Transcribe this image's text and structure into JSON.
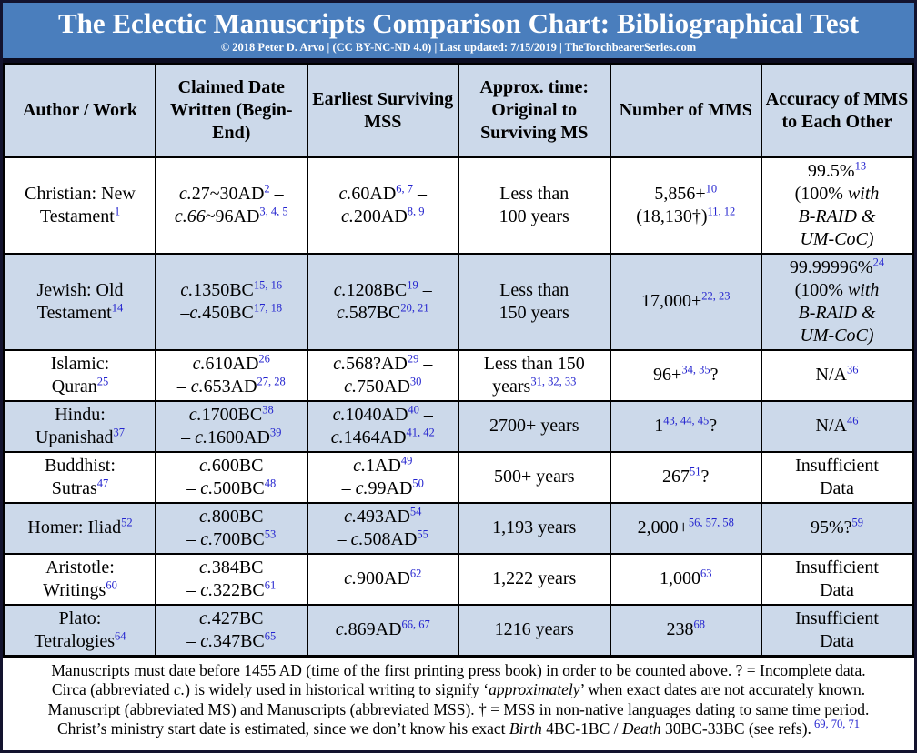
{
  "banner": {
    "title": "The Eclectic Manuscripts Comparison Chart: Bibliographical Test",
    "subtitle": "© 2018 Peter D. Arvo | (CC BY-NC-ND 4.0) | Last updated: 7/15/2019 | TheTorchbearerSeries.com"
  },
  "colors": {
    "banner_bg": "#4a7ebd",
    "banner_text": "#ffffff",
    "row_alt_bg": "#ccd9ea",
    "row_bg": "#ffffff",
    "grid_line": "#000000",
    "outer_frame": "#13132e",
    "footnote_ref": "#2424cf",
    "body_text": "#000000"
  },
  "chart_data": {
    "type": "table",
    "title": "The Eclectic Manuscripts Comparison Chart: Bibliographical Test",
    "columns": [
      "Author / Work",
      "Claimed Date Written (Begin-End)",
      "Earliest Surviving MSS",
      "Approx. time: Original to Surviving MS",
      "Number of MMS",
      "Accuracy of MMS to Each Other"
    ],
    "rows": [
      [
        [
          {
            "t": "Christian: New"
          },
          {
            "br": 1
          },
          {
            "t": "Testament"
          },
          {
            "t": "1",
            "sup": 1
          }
        ],
        [
          {
            "t": "c.",
            "i": 1
          },
          {
            "t": "27~30AD"
          },
          {
            "t": "2",
            "sup": 1
          },
          {
            "t": " –"
          },
          {
            "br": 1
          },
          {
            "t": "c.66",
            "i": 1
          },
          {
            "t": "~96AD"
          },
          {
            "t": "3, 4, 5",
            "sup": 1
          }
        ],
        [
          {
            "t": "c.",
            "i": 1
          },
          {
            "t": "60AD"
          },
          {
            "t": "6, 7",
            "sup": 1
          },
          {
            "t": " –"
          },
          {
            "br": 1
          },
          {
            "t": "c.",
            "i": 1
          },
          {
            "t": "200AD"
          },
          {
            "t": "8, 9",
            "sup": 1
          }
        ],
        [
          {
            "t": "Less than"
          },
          {
            "br": 1
          },
          {
            "t": "100 years"
          }
        ],
        [
          {
            "t": "5,856+"
          },
          {
            "t": "10",
            "sup": 1
          },
          {
            "br": 1
          },
          {
            "t": "(18,130†)"
          },
          {
            "t": "11, 12",
            "sup": 1
          }
        ],
        [
          {
            "t": "99.5%"
          },
          {
            "t": "13",
            "sup": 1
          },
          {
            "br": 1
          },
          {
            "t": "(100% "
          },
          {
            "t": "with",
            "i": 1
          },
          {
            "br": 1
          },
          {
            "t": "B-RAID &",
            "i": 1
          },
          {
            "br": 1
          },
          {
            "t": "UM-CoC)",
            "i": 1
          }
        ]
      ],
      [
        [
          {
            "t": "Jewish: Old"
          },
          {
            "br": 1
          },
          {
            "t": "Testament"
          },
          {
            "t": "14",
            "sup": 1
          }
        ],
        [
          {
            "t": "c.",
            "i": 1
          },
          {
            "t": "1350BC"
          },
          {
            "t": "15, 16",
            "sup": 1
          },
          {
            "br": 1
          },
          {
            "t": "–"
          },
          {
            "t": "c.",
            "i": 1
          },
          {
            "t": "450BC"
          },
          {
            "t": "17, 18",
            "sup": 1
          }
        ],
        [
          {
            "t": "c.",
            "i": 1
          },
          {
            "t": "1208BC"
          },
          {
            "t": "19",
            "sup": 1
          },
          {
            "t": " –"
          },
          {
            "br": 1
          },
          {
            "t": "c.",
            "i": 1
          },
          {
            "t": "587BC"
          },
          {
            "t": "20, 21",
            "sup": 1
          }
        ],
        [
          {
            "t": "Less than"
          },
          {
            "br": 1
          },
          {
            "t": "150 years"
          }
        ],
        [
          {
            "t": "17,000+"
          },
          {
            "t": "22, 23",
            "sup": 1
          }
        ],
        [
          {
            "t": "99.99996%"
          },
          {
            "t": "24",
            "sup": 1
          },
          {
            "br": 1
          },
          {
            "t": "(100% "
          },
          {
            "t": "with",
            "i": 1
          },
          {
            "br": 1
          },
          {
            "t": "B-RAID &",
            "i": 1
          },
          {
            "br": 1
          },
          {
            "t": "UM-CoC)",
            "i": 1
          }
        ]
      ],
      [
        [
          {
            "t": "Islamic:"
          },
          {
            "br": 1
          },
          {
            "t": "Quran"
          },
          {
            "t": "25",
            "sup": 1
          }
        ],
        [
          {
            "t": "c.",
            "i": 1
          },
          {
            "t": "610AD"
          },
          {
            "t": "26",
            "sup": 1
          },
          {
            "br": 1
          },
          {
            "t": "– "
          },
          {
            "t": "c.",
            "i": 1
          },
          {
            "t": "653AD"
          },
          {
            "t": "27, 28",
            "sup": 1
          }
        ],
        [
          {
            "t": "c.",
            "i": 1
          },
          {
            "t": "568?AD"
          },
          {
            "t": "29",
            "sup": 1
          },
          {
            "t": " –"
          },
          {
            "br": 1
          },
          {
            "t": "c.",
            "i": 1
          },
          {
            "t": "750AD"
          },
          {
            "t": "30",
            "sup": 1
          }
        ],
        [
          {
            "t": "Less than 150"
          },
          {
            "br": 1
          },
          {
            "t": "years"
          },
          {
            "t": "31, 32, 33",
            "sup": 1
          }
        ],
        [
          {
            "t": "96+"
          },
          {
            "t": "34, 35",
            "sup": 1
          },
          {
            "t": "?"
          }
        ],
        [
          {
            "t": "N/A"
          },
          {
            "t": "36",
            "sup": 1
          }
        ]
      ],
      [
        [
          {
            "t": "Hindu:"
          },
          {
            "br": 1
          },
          {
            "t": "Upanishad"
          },
          {
            "t": "37",
            "sup": 1
          }
        ],
        [
          {
            "t": "c.",
            "i": 1
          },
          {
            "t": "1700BC"
          },
          {
            "t": "38",
            "sup": 1
          },
          {
            "br": 1
          },
          {
            "t": "– "
          },
          {
            "t": "c.",
            "i": 1
          },
          {
            "t": "1600AD"
          },
          {
            "t": "39",
            "sup": 1
          }
        ],
        [
          {
            "t": "c.",
            "i": 1
          },
          {
            "t": "1040AD"
          },
          {
            "t": "40",
            "sup": 1
          },
          {
            "t": " –"
          },
          {
            "br": 1
          },
          {
            "t": "c.",
            "i": 1
          },
          {
            "t": "1464AD"
          },
          {
            "t": "41, 42",
            "sup": 1
          }
        ],
        [
          {
            "t": "2700+ years"
          }
        ],
        [
          {
            "t": "1"
          },
          {
            "t": "43, 44, 45",
            "sup": 1
          },
          {
            "t": "?"
          }
        ],
        [
          {
            "t": "N/A"
          },
          {
            "t": "46",
            "sup": 1
          }
        ]
      ],
      [
        [
          {
            "t": "Buddhist:"
          },
          {
            "br": 1
          },
          {
            "t": "Sutras"
          },
          {
            "t": "47",
            "sup": 1
          }
        ],
        [
          {
            "t": "c.",
            "i": 1
          },
          {
            "t": "600BC"
          },
          {
            "br": 1
          },
          {
            "t": "– "
          },
          {
            "t": "c.",
            "i": 1
          },
          {
            "t": "500BC"
          },
          {
            "t": "48",
            "sup": 1
          }
        ],
        [
          {
            "t": "c.",
            "i": 1
          },
          {
            "t": "1AD"
          },
          {
            "t": "49",
            "sup": 1
          },
          {
            "br": 1
          },
          {
            "t": "– "
          },
          {
            "t": "c.",
            "i": 1
          },
          {
            "t": "99AD"
          },
          {
            "t": "50",
            "sup": 1
          }
        ],
        [
          {
            "t": "500+ years"
          }
        ],
        [
          {
            "t": "267"
          },
          {
            "t": "51",
            "sup": 1
          },
          {
            "t": "?"
          }
        ],
        [
          {
            "t": "Insufficient"
          },
          {
            "br": 1
          },
          {
            "t": "Data"
          }
        ]
      ],
      [
        [
          {
            "t": "Homer: Iliad"
          },
          {
            "t": "52",
            "sup": 1
          }
        ],
        [
          {
            "t": "c.",
            "i": 1
          },
          {
            "t": "800BC"
          },
          {
            "br": 1
          },
          {
            "t": "– "
          },
          {
            "t": "c.",
            "i": 1
          },
          {
            "t": "700BC"
          },
          {
            "t": "53",
            "sup": 1
          }
        ],
        [
          {
            "t": "c.",
            "i": 1
          },
          {
            "t": "493AD"
          },
          {
            "t": "54",
            "sup": 1
          },
          {
            "br": 1
          },
          {
            "t": "– "
          },
          {
            "t": "c.",
            "i": 1
          },
          {
            "t": "508AD"
          },
          {
            "t": "55",
            "sup": 1
          }
        ],
        [
          {
            "t": "1,193 years"
          }
        ],
        [
          {
            "t": "2,000+"
          },
          {
            "t": "56, 57, 58",
            "sup": 1
          }
        ],
        [
          {
            "t": "95%?"
          },
          {
            "t": "59",
            "sup": 1
          }
        ]
      ],
      [
        [
          {
            "t": "Aristotle:"
          },
          {
            "br": 1
          },
          {
            "t": "Writings"
          },
          {
            "t": "60",
            "sup": 1
          }
        ],
        [
          {
            "t": "c.",
            "i": 1
          },
          {
            "t": "384BC"
          },
          {
            "br": 1
          },
          {
            "t": "– "
          },
          {
            "t": "c.",
            "i": 1
          },
          {
            "t": "322BC"
          },
          {
            "t": "61",
            "sup": 1
          }
        ],
        [
          {
            "t": "c.",
            "i": 1
          },
          {
            "t": "900AD"
          },
          {
            "t": "62",
            "sup": 1
          }
        ],
        [
          {
            "t": "1,222 years"
          }
        ],
        [
          {
            "t": "1,000"
          },
          {
            "t": "63",
            "sup": 1
          }
        ],
        [
          {
            "t": "Insufficient"
          },
          {
            "br": 1
          },
          {
            "t": "Data"
          }
        ]
      ],
      [
        [
          {
            "t": "Plato:"
          },
          {
            "br": 1
          },
          {
            "t": "Tetralogies"
          },
          {
            "t": "64",
            "sup": 1
          }
        ],
        [
          {
            "t": "c.",
            "i": 1
          },
          {
            "t": "427BC"
          },
          {
            "br": 1
          },
          {
            "t": "– "
          },
          {
            "t": "c.",
            "i": 1
          },
          {
            "t": "347BC"
          },
          {
            "t": "65",
            "sup": 1
          }
        ],
        [
          {
            "t": "c.",
            "i": 1
          },
          {
            "t": "869AD"
          },
          {
            "t": "66, 67",
            "sup": 1
          }
        ],
        [
          {
            "t": "1216 years"
          }
        ],
        [
          {
            "t": "238"
          },
          {
            "t": "68",
            "sup": 1
          }
        ],
        [
          {
            "t": "Insufficient"
          },
          {
            "br": 1
          },
          {
            "t": "Data"
          }
        ]
      ]
    ]
  },
  "footnotes": [
    [
      {
        "t": "Manuscripts must date before 1455 AD (time of the first printing press book) in order to be counted above. ? = Incomplete data."
      }
    ],
    [
      {
        "t": "Circa (abbreviated "
      },
      {
        "t": "c.",
        "i": 1
      },
      {
        "t": ") is widely used in historical writing to signify ‘"
      },
      {
        "t": "approximately",
        "i": 1
      },
      {
        "t": "’ when exact dates are not accurately known."
      }
    ],
    [
      {
        "t": "Manuscript (abbreviated MS) and Manuscripts (abbreviated MSS). † = MSS in non-native languages dating to same time period."
      }
    ],
    [
      {
        "t": "Christ’s ministry start date is estimated, since we don’t know his exact "
      },
      {
        "t": "Birth",
        "i": 1
      },
      {
        "t": " 4BC-1BC / "
      },
      {
        "t": "Death",
        "i": 1
      },
      {
        "t": " 30BC-33BC (see refs)."
      },
      {
        "t": " 69, 70, 71",
        "sup": 1
      }
    ]
  ]
}
